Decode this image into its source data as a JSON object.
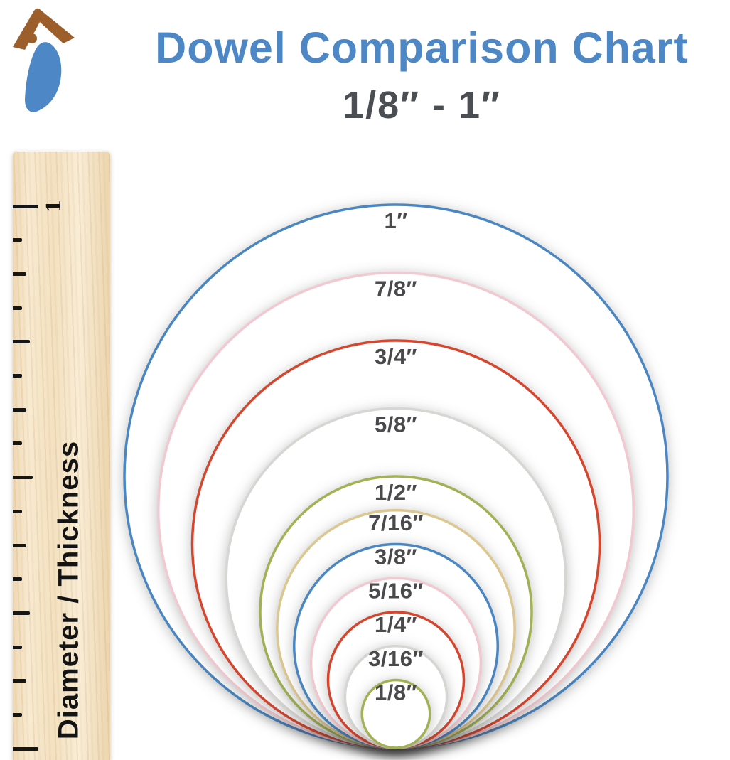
{
  "header": {
    "title": "Dowel Comparison Chart",
    "subtitle": "1/8″ - 1″"
  },
  "logo": {
    "name": "woodpecker-brand-mark",
    "brown": "#9c5e2b",
    "blue": "#4e87c5"
  },
  "ruler": {
    "inch_mark_label": "1",
    "axis_label": "Diameter / Thickness",
    "tick_color": "#161616"
  },
  "chart": {
    "type": "proportional-circles",
    "unit": "inch",
    "alignment": "tangent-bottom",
    "label_color": "#4a4a4c",
    "circles": [
      {
        "label": "1″",
        "inches": 1.0,
        "color": "#4a86c2"
      },
      {
        "label": "7/8″",
        "inches": 0.875,
        "color": "#f2c9d1"
      },
      {
        "label": "3/4″",
        "inches": 0.75,
        "color": "#d6452e"
      },
      {
        "label": "5/8″",
        "inches": 0.625,
        "color": "#d8d6d3"
      },
      {
        "label": "1/2″",
        "inches": 0.5,
        "color": "#a3b155"
      },
      {
        "label": "7/16″",
        "inches": 0.4375,
        "color": "#ddc791"
      },
      {
        "label": "3/8″",
        "inches": 0.375,
        "color": "#4a86c2"
      },
      {
        "label": "5/16″",
        "inches": 0.3125,
        "color": "#f2c9d1"
      },
      {
        "label": "1/4″",
        "inches": 0.25,
        "color": "#d6452e"
      },
      {
        "label": "3/16″",
        "inches": 0.1875,
        "color": "#d8d6d3"
      },
      {
        "label": "1/8″",
        "inches": 0.125,
        "color": "#a3b155"
      }
    ]
  }
}
